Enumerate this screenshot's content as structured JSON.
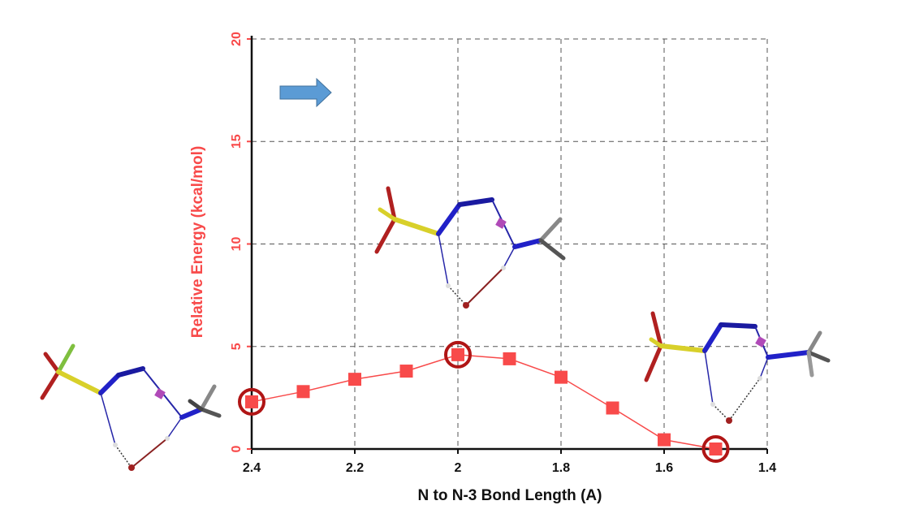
{
  "chart_data": {
    "type": "line",
    "xlabel": "N to N-3 Bond Length (A)",
    "ylabel": "Relative Energy (kcal/mol)",
    "xlim": [
      2.4,
      1.4
    ],
    "ylim": [
      0,
      20
    ],
    "x_reversed": true,
    "grid": true,
    "grid_style": "dashed",
    "x_ticks": [
      "2.4",
      "2.2",
      "2",
      "1.8",
      "1.6",
      "1.4"
    ],
    "y_ticks": [
      "0",
      "5",
      "10",
      "15",
      "20"
    ],
    "series": [
      {
        "x": [
          2.4,
          2.3,
          2.2,
          2.1,
          2.0,
          1.9,
          1.8,
          1.7,
          1.6,
          1.5
        ],
        "y": [
          2.3,
          2.8,
          3.4,
          3.8,
          4.6,
          4.4,
          3.5,
          2.0,
          0.45,
          0.0
        ],
        "marker": "square",
        "color": "#f84a4a"
      }
    ],
    "highlighted_points_x": [
      2.4,
      2.0,
      1.5
    ],
    "highlight_color": "#b01515",
    "ylabel_color": "#f84a4a",
    "annotations": [
      {
        "type": "arrow",
        "direction": "right",
        "color": "#5b9bd5"
      },
      {
        "type": "molecule-structure",
        "near_x": 2.4
      },
      {
        "type": "molecule-structure",
        "near_x": 2.0
      },
      {
        "type": "molecule-structure",
        "near_x": 1.5
      }
    ]
  }
}
